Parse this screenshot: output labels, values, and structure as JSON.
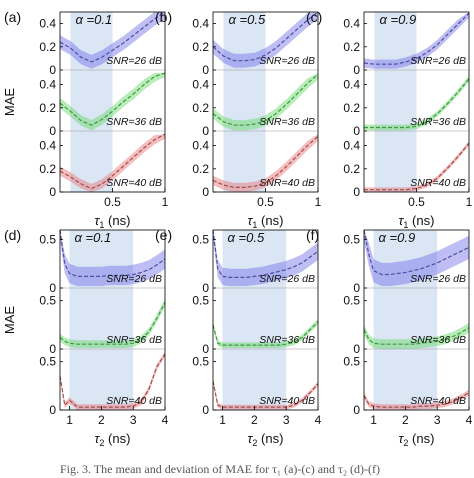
{
  "caption": "Fig. 3. The mean and deviation of MAE for τ₁ (a)-(c) and τ₂ (d)-(f)",
  "colors": {
    "blue": "#6f6fe8",
    "green": "#5fd85f",
    "red": "#e86f6f",
    "window": "#dbe6f5",
    "axis": "#000000"
  },
  "chart_data": [
    {
      "type": "line",
      "panel": "(a)",
      "alpha": "α =0.1",
      "x_label": "τ1 (ns)",
      "y_label": "MAE",
      "x_ticks": [
        "0.5",
        "1"
      ],
      "xlim": [
        0,
        1
      ],
      "ylim": [
        0,
        0.5
      ],
      "y_ticks": [
        "0",
        "0.2",
        "0.4"
      ],
      "window": [
        0.1,
        0.5
      ],
      "x": [
        0,
        0.1,
        0.2,
        0.3,
        0.4,
        0.5,
        0.6,
        0.7,
        0.8,
        0.9,
        1
      ],
      "series": [
        {
          "name": "SNR=26 dB",
          "values": [
            0.24,
            0.19,
            0.11,
            0.07,
            0.11,
            0.17,
            0.23,
            0.3,
            0.37,
            0.44,
            0.5
          ],
          "spread": 0.06
        },
        {
          "name": "SNR=36 dB",
          "values": [
            0.24,
            0.17,
            0.09,
            0.05,
            0.1,
            0.17,
            0.25,
            0.32,
            0.4,
            0.47,
            0.51
          ],
          "spread": 0.045
        },
        {
          "name": "SNR=40 dB",
          "values": [
            0.18,
            0.13,
            0.07,
            0.03,
            0.07,
            0.14,
            0.22,
            0.3,
            0.38,
            0.45,
            0.5
          ],
          "spread": 0.04
        }
      ]
    },
    {
      "type": "line",
      "panel": "(b)",
      "alpha": "α =0.5",
      "x_label": "τ1 (ns)",
      "y_label": "MAE",
      "x_ticks": [
        "0.5",
        "1"
      ],
      "xlim": [
        0,
        1
      ],
      "ylim": [
        0,
        0.5
      ],
      "y_ticks": [
        "0",
        "0.2",
        "0.4"
      ],
      "window": [
        0.1,
        0.5
      ],
      "x": [
        0,
        0.1,
        0.2,
        0.3,
        0.4,
        0.5,
        0.6,
        0.7,
        0.8,
        0.9,
        1
      ],
      "series": [
        {
          "name": "SNR=26 dB",
          "values": [
            0.2,
            0.12,
            0.08,
            0.08,
            0.09,
            0.13,
            0.19,
            0.27,
            0.35,
            0.43,
            0.5
          ],
          "spread": 0.06
        },
        {
          "name": "SNR=36 dB",
          "values": [
            0.15,
            0.08,
            0.05,
            0.05,
            0.06,
            0.09,
            0.15,
            0.23,
            0.32,
            0.41,
            0.49
          ],
          "spread": 0.045
        },
        {
          "name": "SNR=40 dB",
          "values": [
            0.1,
            0.06,
            0.04,
            0.04,
            0.05,
            0.08,
            0.14,
            0.22,
            0.31,
            0.4,
            0.48
          ],
          "spread": 0.04
        }
      ]
    },
    {
      "type": "line",
      "panel": "(c)",
      "alpha": "α =0.9",
      "x_label": "τ1 (ns)",
      "y_label": "MAE",
      "x_ticks": [
        "0.5",
        "1"
      ],
      "xlim": [
        0,
        1
      ],
      "ylim": [
        0,
        0.5
      ],
      "y_ticks": [
        "0",
        "0.2",
        "0.4"
      ],
      "window": [
        0.1,
        0.5
      ],
      "x": [
        0,
        0.1,
        0.2,
        0.3,
        0.4,
        0.5,
        0.6,
        0.7,
        0.8,
        0.9,
        1
      ],
      "series": [
        {
          "name": "SNR=26 dB",
          "values": [
            0.06,
            0.05,
            0.05,
            0.05,
            0.07,
            0.1,
            0.15,
            0.22,
            0.31,
            0.4,
            0.49
          ],
          "spread": 0.04
        },
        {
          "name": "SNR=36 dB",
          "values": [
            0.03,
            0.03,
            0.03,
            0.03,
            0.03,
            0.04,
            0.08,
            0.15,
            0.24,
            0.34,
            0.45
          ],
          "spread": 0.025
        },
        {
          "name": "SNR=40 dB",
          "values": [
            0.02,
            0.02,
            0.02,
            0.02,
            0.02,
            0.03,
            0.06,
            0.12,
            0.21,
            0.31,
            0.42
          ],
          "spread": 0.02
        }
      ]
    },
    {
      "type": "line",
      "panel": "(d)",
      "alpha": "α =0.1",
      "x_label": "τ2 (ns)",
      "y_label": "MAE",
      "x_ticks": [
        "1",
        "2",
        "3",
        "4"
      ],
      "xlim": [
        0.7,
        4
      ],
      "ylim": [
        0,
        0.6
      ],
      "y_ticks": [
        "0",
        "0.5"
      ],
      "window": [
        1.0,
        3.0
      ],
      "x": [
        0.7,
        0.85,
        1,
        1.25,
        1.5,
        1.75,
        2,
        2.25,
        2.5,
        2.75,
        3,
        3.25,
        3.5,
        3.75,
        4
      ],
      "series": [
        {
          "name": "SNR=26 dB",
          "values": [
            0.6,
            0.25,
            0.15,
            0.12,
            0.12,
            0.12,
            0.12,
            0.13,
            0.13,
            0.13,
            0.14,
            0.16,
            0.19,
            0.24,
            0.3
          ],
          "spread": 0.1
        },
        {
          "name": "SNR=36 dB",
          "values": [
            0.12,
            0.08,
            0.06,
            0.05,
            0.05,
            0.05,
            0.05,
            0.05,
            0.05,
            0.05,
            0.06,
            0.1,
            0.18,
            0.32,
            0.48
          ],
          "spread": 0.04
        },
        {
          "name": "SNR=40 dB",
          "values": [
            0.35,
            0.05,
            0.1,
            0.03,
            0.03,
            0.03,
            0.03,
            0.03,
            0.03,
            0.03,
            0.04,
            0.08,
            0.22,
            0.45,
            0.58
          ],
          "spread": 0.03
        }
      ]
    },
    {
      "type": "line",
      "panel": "(e)",
      "alpha": "α =0.5",
      "x_label": "τ2 (ns)",
      "y_label": "MAE",
      "x_ticks": [
        "1",
        "2",
        "3",
        "4"
      ],
      "xlim": [
        0.7,
        4
      ],
      "ylim": [
        0,
        0.6
      ],
      "y_ticks": [
        "0",
        "0.5"
      ],
      "window": [
        1.0,
        3.0
      ],
      "x": [
        0.7,
        0.85,
        1,
        1.25,
        1.5,
        1.75,
        2,
        2.25,
        2.5,
        2.75,
        3,
        3.25,
        3.5,
        3.75,
        4
      ],
      "series": [
        {
          "name": "SNR=26 dB",
          "values": [
            0.6,
            0.2,
            0.12,
            0.11,
            0.11,
            0.11,
            0.12,
            0.13,
            0.15,
            0.17,
            0.19,
            0.22,
            0.26,
            0.32,
            0.38
          ],
          "spread": 0.09
        },
        {
          "name": "SNR=36 dB",
          "values": [
            0.25,
            0.06,
            0.04,
            0.04,
            0.04,
            0.04,
            0.04,
            0.04,
            0.04,
            0.04,
            0.05,
            0.07,
            0.12,
            0.2,
            0.28
          ],
          "spread": 0.03
        },
        {
          "name": "SNR=40 dB",
          "values": [
            0.3,
            0.05,
            0.03,
            0.03,
            0.03,
            0.03,
            0.03,
            0.03,
            0.03,
            0.03,
            0.03,
            0.05,
            0.1,
            0.18,
            0.27
          ],
          "spread": 0.025
        }
      ]
    },
    {
      "type": "line",
      "panel": "(f)",
      "alpha": "α =0.9",
      "x_label": "τ2 (ns)",
      "y_label": "MAE",
      "x_ticks": [
        "1",
        "2",
        "3",
        "4"
      ],
      "xlim": [
        0.7,
        4
      ],
      "ylim": [
        0,
        0.6
      ],
      "y_ticks": [
        "0",
        "0.5"
      ],
      "window": [
        1.0,
        3.0
      ],
      "x": [
        0.7,
        0.85,
        1,
        1.25,
        1.5,
        1.75,
        2,
        2.25,
        2.5,
        2.75,
        3,
        3.25,
        3.5,
        3.75,
        4
      ],
      "series": [
        {
          "name": "SNR=26 dB",
          "values": [
            0.6,
            0.35,
            0.18,
            0.14,
            0.14,
            0.15,
            0.16,
            0.18,
            0.2,
            0.23,
            0.26,
            0.3,
            0.34,
            0.38,
            0.42
          ],
          "spread": 0.12
        },
        {
          "name": "SNR=36 dB",
          "values": [
            0.2,
            0.1,
            0.06,
            0.05,
            0.05,
            0.05,
            0.05,
            0.05,
            0.06,
            0.07,
            0.08,
            0.1,
            0.13,
            0.17,
            0.22
          ],
          "spread": 0.05
        },
        {
          "name": "SNR=40 dB",
          "values": [
            0.15,
            0.06,
            0.04,
            0.03,
            0.03,
            0.03,
            0.03,
            0.03,
            0.04,
            0.04,
            0.05,
            0.06,
            0.09,
            0.13,
            0.18
          ],
          "spread": 0.03
        }
      ]
    }
  ]
}
